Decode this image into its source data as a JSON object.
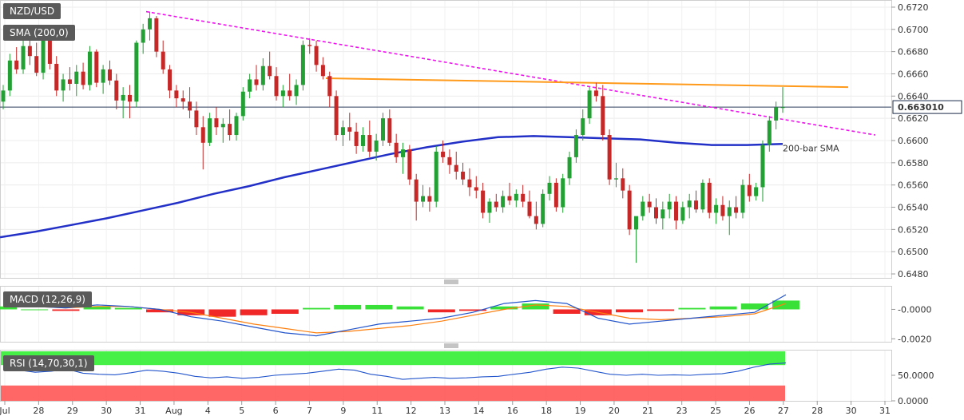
{
  "header": {
    "symbol": "NZD/USD",
    "sma_label": "SMA (200,0)"
  },
  "price_panel": {
    "y_ticks": [
      "0.6720",
      "0.6700",
      "0.6680",
      "0.6660",
      "0.6640",
      "0.6620",
      "0.6600",
      "0.6580",
      "0.6560",
      "0.6540",
      "0.6520",
      "0.6500",
      "0.6480"
    ],
    "current_price": "0.663010",
    "sma_annotation": "200-bar SMA"
  },
  "macd_panel": {
    "label": "MACD (12,26,9)",
    "y_ticks": [
      "-0.0000",
      "-0.0020"
    ]
  },
  "rsi_panel": {
    "label": "RSI (14,70,30,1)",
    "y_ticks": [
      "50.0000",
      "0.0000"
    ]
  },
  "x_axis": {
    "ticks": [
      "Jul",
      "28",
      "29",
      "30",
      "31",
      "Aug",
      "4",
      "5",
      "6",
      "7",
      "9",
      "11",
      "12",
      "13",
      "14",
      "16",
      "18",
      "19",
      "20",
      "21",
      "23",
      "25",
      "26",
      "27",
      "28",
      "30",
      "31"
    ]
  },
  "colors": {
    "up": "#22a033",
    "down": "#c62828",
    "sma": "#2230c8",
    "trend_down": "#ee11ee",
    "trend_flat": "#ff9a1a",
    "macd_line": "#2255cc",
    "signal_line": "#ff7f0e",
    "hist_up": "#22dd22",
    "hist_down": "#ee1111",
    "rsi_line": "#2255cc",
    "overbought_zone": "#33ee33",
    "oversold_zone": "#ff5555"
  },
  "chart_data": {
    "type": "candlestick",
    "instrument": "NZD/USD",
    "ylim": [
      0.6475,
      0.6725
    ],
    "current_price": 0.66301,
    "candles": [
      [
        0.6635,
        0.665,
        0.6628,
        0.6645
      ],
      [
        0.6645,
        0.6678,
        0.664,
        0.6672
      ],
      [
        0.6672,
        0.6684,
        0.666,
        0.6664
      ],
      [
        0.6664,
        0.669,
        0.666,
        0.6685
      ],
      [
        0.6685,
        0.6692,
        0.6668,
        0.6676
      ],
      [
        0.6676,
        0.6688,
        0.6658,
        0.6661
      ],
      [
        0.6661,
        0.67,
        0.6655,
        0.6693
      ],
      [
        0.6693,
        0.6697,
        0.6664,
        0.6669
      ],
      [
        0.6669,
        0.6676,
        0.664,
        0.6645
      ],
      [
        0.6645,
        0.666,
        0.6635,
        0.6655
      ],
      [
        0.6655,
        0.6666,
        0.6645,
        0.6651
      ],
      [
        0.6651,
        0.6668,
        0.664,
        0.6662
      ],
      [
        0.6662,
        0.667,
        0.6646,
        0.665
      ],
      [
        0.665,
        0.6685,
        0.6645,
        0.668
      ],
      [
        0.668,
        0.6682,
        0.6648,
        0.6652
      ],
      [
        0.6652,
        0.6668,
        0.6642,
        0.6664
      ],
      [
        0.6664,
        0.6672,
        0.665,
        0.6654
      ],
      [
        0.6654,
        0.666,
        0.6628,
        0.6636
      ],
      [
        0.6636,
        0.6648,
        0.662,
        0.6641
      ],
      [
        0.6641,
        0.665,
        0.662,
        0.6635
      ],
      [
        0.6635,
        0.669,
        0.663,
        0.6688
      ],
      [
        0.6688,
        0.6705,
        0.6678,
        0.67
      ],
      [
        0.67,
        0.6716,
        0.669,
        0.671
      ],
      [
        0.671,
        0.6712,
        0.6675,
        0.668
      ],
      [
        0.668,
        0.669,
        0.666,
        0.6664
      ],
      [
        0.6664,
        0.6668,
        0.6638,
        0.6645
      ],
      [
        0.6645,
        0.665,
        0.663,
        0.6638
      ],
      [
        0.6638,
        0.6645,
        0.6628,
        0.6635
      ],
      [
        0.6635,
        0.6648,
        0.662,
        0.6627
      ],
      [
        0.6627,
        0.6635,
        0.6605,
        0.6612
      ],
      [
        0.6612,
        0.6622,
        0.6574,
        0.6598
      ],
      [
        0.6598,
        0.6625,
        0.6595,
        0.662
      ],
      [
        0.662,
        0.663,
        0.6605,
        0.6612
      ],
      [
        0.6612,
        0.662,
        0.6598,
        0.6615
      ],
      [
        0.6615,
        0.6628,
        0.66,
        0.6605
      ],
      [
        0.6605,
        0.6625,
        0.66,
        0.6622
      ],
      [
        0.6622,
        0.6648,
        0.6618,
        0.6644
      ],
      [
        0.6644,
        0.666,
        0.6638,
        0.6655
      ],
      [
        0.6655,
        0.6668,
        0.6645,
        0.665
      ],
      [
        0.665,
        0.6674,
        0.6645,
        0.6667
      ],
      [
        0.6667,
        0.668,
        0.6655,
        0.6658
      ],
      [
        0.6658,
        0.6666,
        0.6636,
        0.664
      ],
      [
        0.664,
        0.665,
        0.663,
        0.6645
      ],
      [
        0.6645,
        0.666,
        0.6636,
        0.664
      ],
      [
        0.664,
        0.6655,
        0.6632,
        0.665
      ],
      [
        0.665,
        0.669,
        0.6645,
        0.6686
      ],
      [
        0.6686,
        0.6692,
        0.6678,
        0.6685
      ],
      [
        0.6685,
        0.669,
        0.6662,
        0.6668
      ],
      [
        0.6668,
        0.6675,
        0.6655,
        0.6658
      ],
      [
        0.6658,
        0.6662,
        0.663,
        0.664
      ],
      [
        0.664,
        0.6645,
        0.66,
        0.6605
      ],
      [
        0.6605,
        0.6618,
        0.6595,
        0.6612
      ],
      [
        0.6612,
        0.6625,
        0.66,
        0.6608
      ],
      [
        0.6608,
        0.6616,
        0.6588,
        0.6595
      ],
      [
        0.6595,
        0.6612,
        0.659,
        0.6605
      ],
      [
        0.6605,
        0.6618,
        0.6585,
        0.659
      ],
      [
        0.659,
        0.6606,
        0.6582,
        0.66
      ],
      [
        0.66,
        0.6625,
        0.6595,
        0.662
      ],
      [
        0.662,
        0.6628,
        0.6595,
        0.6598
      ],
      [
        0.6598,
        0.6606,
        0.658,
        0.6585
      ],
      [
        0.6585,
        0.6598,
        0.657,
        0.6592
      ],
      [
        0.6592,
        0.6596,
        0.656,
        0.6565
      ],
      [
        0.6565,
        0.657,
        0.6528,
        0.6545
      ],
      [
        0.6545,
        0.656,
        0.654,
        0.655
      ],
      [
        0.655,
        0.6558,
        0.6536,
        0.6545
      ],
      [
        0.6545,
        0.6595,
        0.654,
        0.659
      ],
      [
        0.659,
        0.66,
        0.658,
        0.6585
      ],
      [
        0.6585,
        0.6592,
        0.657,
        0.6578
      ],
      [
        0.6578,
        0.659,
        0.6565,
        0.6572
      ],
      [
        0.6572,
        0.658,
        0.656,
        0.6565
      ],
      [
        0.6565,
        0.6575,
        0.655,
        0.6558
      ],
      [
        0.6558,
        0.6568,
        0.6548,
        0.6555
      ],
      [
        0.6555,
        0.6562,
        0.653,
        0.6535
      ],
      [
        0.6535,
        0.6548,
        0.6526,
        0.6545
      ],
      [
        0.6545,
        0.6552,
        0.6536,
        0.654
      ],
      [
        0.654,
        0.6555,
        0.6535,
        0.655
      ],
      [
        0.655,
        0.6562,
        0.6542,
        0.6546
      ],
      [
        0.6546,
        0.6556,
        0.654,
        0.6552
      ],
      [
        0.6552,
        0.656,
        0.654,
        0.6545
      ],
      [
        0.6545,
        0.6555,
        0.653,
        0.6532
      ],
      [
        0.6532,
        0.6545,
        0.652,
        0.6525
      ],
      [
        0.6525,
        0.6556,
        0.6522,
        0.6552
      ],
      [
        0.6552,
        0.6568,
        0.6546,
        0.6562
      ],
      [
        0.6562,
        0.6566,
        0.6536,
        0.654
      ],
      [
        0.654,
        0.657,
        0.6535,
        0.6566
      ],
      [
        0.6566,
        0.659,
        0.656,
        0.6585
      ],
      [
        0.6585,
        0.661,
        0.658,
        0.6605
      ],
      [
        0.6605,
        0.6628,
        0.66,
        0.662
      ],
      [
        0.662,
        0.6648,
        0.6615,
        0.6645
      ],
      [
        0.6645,
        0.6652,
        0.6635,
        0.664
      ],
      [
        0.664,
        0.665,
        0.66,
        0.6605
      ],
      [
        0.6605,
        0.661,
        0.656,
        0.6565
      ],
      [
        0.6565,
        0.658,
        0.6558,
        0.6566
      ],
      [
        0.6566,
        0.6575,
        0.6548,
        0.6555
      ],
      [
        0.6555,
        0.656,
        0.6515,
        0.652
      ],
      [
        0.652,
        0.653,
        0.649,
        0.6532
      ],
      [
        0.6532,
        0.655,
        0.6528,
        0.6545
      ],
      [
        0.6545,
        0.6552,
        0.6535,
        0.654
      ],
      [
        0.654,
        0.6548,
        0.6525,
        0.653
      ],
      [
        0.653,
        0.6545,
        0.652,
        0.6538
      ],
      [
        0.6538,
        0.6552,
        0.653,
        0.6545
      ],
      [
        0.6545,
        0.655,
        0.652,
        0.6528
      ],
      [
        0.6528,
        0.6545,
        0.6525,
        0.654
      ],
      [
        0.654,
        0.6552,
        0.653,
        0.6546
      ],
      [
        0.6546,
        0.6555,
        0.6535,
        0.6538
      ],
      [
        0.6538,
        0.6565,
        0.6535,
        0.6562
      ],
      [
        0.6562,
        0.6566,
        0.653,
        0.6535
      ],
      [
        0.6535,
        0.6548,
        0.6525,
        0.6542
      ],
      [
        0.6542,
        0.655,
        0.6528,
        0.6532
      ],
      [
        0.6532,
        0.6546,
        0.6515,
        0.654
      ],
      [
        0.654,
        0.655,
        0.653,
        0.6535
      ],
      [
        0.6535,
        0.6565,
        0.653,
        0.656
      ],
      [
        0.656,
        0.657,
        0.6545,
        0.655
      ],
      [
        0.655,
        0.6562,
        0.6546,
        0.6558
      ],
      [
        0.6558,
        0.66,
        0.6545,
        0.6596
      ],
      [
        0.6596,
        0.6622,
        0.659,
        0.6618
      ],
      [
        0.6618,
        0.6635,
        0.661,
        0.663
      ],
      [
        0.663,
        0.6648,
        0.6625,
        0.663
      ]
    ],
    "sma_200": [
      0.6513,
      0.6518,
      0.6524,
      0.653,
      0.6537,
      0.6544,
      0.6552,
      0.6559,
      0.6567,
      0.6574,
      0.6581,
      0.6588,
      0.6594,
      0.6599,
      0.6603,
      0.6604,
      0.6603,
      0.6602,
      0.6601,
      0.6598,
      0.6596,
      0.6596,
      0.6597
    ],
    "trendline_descending": {
      "from": [
        0.6716,
        22
      ],
      "to": [
        0.6605,
        128
      ]
    },
    "trendline_horizontal": {
      "from": [
        0.6656,
        50
      ],
      "to": [
        0.6648,
        122
      ]
    },
    "macd": {
      "macd_line": [
        0.0004,
        0.0002,
        0.0001,
        0.0003,
        0.0002,
        0.0,
        -0.0005,
        -0.0008,
        -0.0012,
        -0.0016,
        -0.0018,
        -0.0014,
        -0.001,
        -0.0008,
        -0.0006,
        -0.0002,
        0.0004,
        0.0006,
        0.0004,
        -0.0006,
        -0.001,
        -0.0008,
        -0.0006,
        -0.0004,
        -0.0002,
        0.001
      ],
      "signal_line": [
        0.0002,
        0.0002,
        0.0001,
        0.0002,
        0.0002,
        0.0,
        -0.0002,
        -0.0006,
        -0.001,
        -0.0013,
        -0.0016,
        -0.0015,
        -0.0013,
        -0.0011,
        -0.0008,
        -0.0004,
        0.0,
        0.0003,
        0.0002,
        -0.0002,
        -0.0006,
        -0.0007,
        -0.0006,
        -0.0005,
        -0.0003,
        0.0004
      ],
      "histogram": [
        0.0002,
        0.0,
        -0.0001,
        0.0002,
        0.0001,
        -0.0002,
        -0.0004,
        -0.0005,
        -0.0004,
        -0.0003,
        0.0001,
        0.0003,
        0.0003,
        0.0002,
        -0.0002,
        -0.0001,
        0.0002,
        0.0004,
        -0.0003,
        -0.0004,
        -0.0002,
        -0.0001,
        0.0001,
        0.0002,
        0.0004,
        0.0006
      ]
    },
    "rsi": [
      62,
      60,
      56,
      58,
      62,
      54,
      52,
      51,
      55,
      60,
      58,
      54,
      48,
      45,
      47,
      44,
      46,
      50,
      52,
      54,
      58,
      62,
      60,
      52,
      48,
      42,
      44,
      46,
      44,
      45,
      47,
      48,
      52,
      56,
      62,
      66,
      64,
      58,
      52,
      50,
      52,
      50,
      51,
      50,
      52,
      53,
      58,
      66,
      72,
      74
    ]
  }
}
